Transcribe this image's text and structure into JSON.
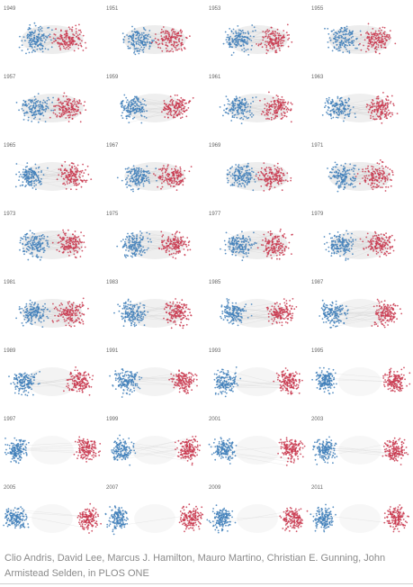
{
  "figure": {
    "colors": {
      "democrat": "#3f7fba",
      "republican": "#c9384f",
      "edge": "#bdbdbd"
    },
    "panels": [
      {
        "year": "1949",
        "sep": 0.3
      },
      {
        "year": "1951",
        "sep": 0.3
      },
      {
        "year": "1953",
        "sep": 0.35
      },
      {
        "year": "1955",
        "sep": 0.3
      },
      {
        "year": "1957",
        "sep": 0.3
      },
      {
        "year": "1959",
        "sep": 0.45
      },
      {
        "year": "1961",
        "sep": 0.4
      },
      {
        "year": "1963",
        "sep": 0.45
      },
      {
        "year": "1965",
        "sep": 0.45
      },
      {
        "year": "1967",
        "sep": 0.35
      },
      {
        "year": "1969",
        "sep": 0.3
      },
      {
        "year": "1971",
        "sep": 0.3
      },
      {
        "year": "1973",
        "sep": 0.35
      },
      {
        "year": "1975",
        "sep": 0.4
      },
      {
        "year": "1977",
        "sep": 0.35
      },
      {
        "year": "1979",
        "sep": 0.4
      },
      {
        "year": "1981",
        "sep": 0.35
      },
      {
        "year": "1983",
        "sep": 0.5
      },
      {
        "year": "1985",
        "sep": 0.55
      },
      {
        "year": "1987",
        "sep": 0.6
      },
      {
        "year": "1989",
        "sep": 0.65
      },
      {
        "year": "1991",
        "sep": 0.7
      },
      {
        "year": "1993",
        "sep": 0.8
      },
      {
        "year": "1995",
        "sep": 0.9
      },
      {
        "year": "1997",
        "sep": 0.9
      },
      {
        "year": "1999",
        "sep": 0.85
      },
      {
        "year": "2001",
        "sep": 0.85
      },
      {
        "year": "2003",
        "sep": 0.9
      },
      {
        "year": "2005",
        "sep": 0.95
      },
      {
        "year": "2007",
        "sep": 0.95
      },
      {
        "year": "2009",
        "sep": 0.95
      },
      {
        "year": "2011",
        "sep": 0.95
      }
    ]
  },
  "caption": "Clio Andris, David Lee, Marcus J. Hamilton, Mauro Martino, Christian E. Gunning, John Armistead Selden, in PLOS ONE"
}
